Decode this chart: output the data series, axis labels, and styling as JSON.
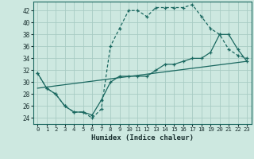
{
  "xlabel": "Humidex (Indice chaleur)",
  "bg_color": "#cde8e0",
  "grid_color": "#a8ccc4",
  "line_color": "#1a6860",
  "xlim": [
    -0.5,
    23.5
  ],
  "ylim": [
    23,
    43.5
  ],
  "yticks": [
    24,
    26,
    28,
    30,
    32,
    34,
    36,
    38,
    40,
    42
  ],
  "xticks": [
    0,
    1,
    2,
    3,
    4,
    5,
    6,
    7,
    8,
    9,
    10,
    11,
    12,
    13,
    14,
    15,
    16,
    17,
    18,
    19,
    20,
    21,
    22,
    23
  ],
  "series1_x": [
    0,
    1,
    2,
    3,
    4,
    5,
    6,
    7,
    8,
    9,
    10,
    11,
    12,
    13,
    14,
    15,
    16,
    17,
    18,
    19,
    20,
    21,
    22,
    23
  ],
  "series1_y": [
    31.5,
    29,
    28,
    26,
    25,
    25,
    24,
    25.5,
    36,
    39,
    42,
    42,
    41,
    42.5,
    42.5,
    42.5,
    42.5,
    43,
    41,
    39,
    38,
    35.5,
    34.5,
    34
  ],
  "series2_x": [
    0,
    1,
    2,
    3,
    4,
    5,
    6,
    7,
    8,
    9,
    10,
    11,
    12,
    13,
    14,
    15,
    16,
    17,
    18,
    19,
    20,
    21,
    22,
    23
  ],
  "series2_y": [
    31.5,
    29,
    28,
    26,
    25,
    25,
    24.5,
    27,
    30,
    31,
    31,
    31,
    31,
    32,
    33,
    33,
    33.5,
    34,
    34,
    35,
    38,
    38,
    35.5,
    33.5
  ],
  "series3_x": [
    0,
    23
  ],
  "series3_y": [
    29,
    33.5
  ]
}
